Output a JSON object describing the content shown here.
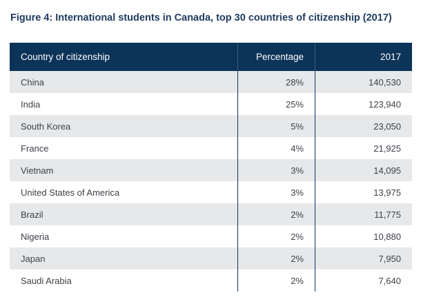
{
  "figure": {
    "title": "Figure 4: International students in Canada, top 30 countries of citizenship (2017)"
  },
  "table": {
    "headers": [
      "Country of citizenship",
      "Percentage",
      "2017"
    ],
    "rows": [
      {
        "country": "China",
        "percentage": "28%",
        "count": "140,530"
      },
      {
        "country": "India",
        "percentage": "25%",
        "count": "123,940"
      },
      {
        "country": "South Korea",
        "percentage": "5%",
        "count": "23,050"
      },
      {
        "country": "France",
        "percentage": "4%",
        "count": "21,925"
      },
      {
        "country": "Vietnam",
        "percentage": "3%",
        "count": "14,095"
      },
      {
        "country": "United States of America",
        "percentage": "3%",
        "count": "13,975"
      },
      {
        "country": "Brazil",
        "percentage": "2%",
        "count": "11,775"
      },
      {
        "country": "Nigeria",
        "percentage": "2%",
        "count": "10,880"
      },
      {
        "country": "Japan",
        "percentage": "2%",
        "count": "7,950"
      },
      {
        "country": "Saudi Arabia",
        "percentage": "2%",
        "count": "7,640"
      }
    ]
  },
  "colors": {
    "header_bg": "#0c3358",
    "title_text": "#1f3a5f",
    "shaded_row": "#e7e8ea"
  }
}
